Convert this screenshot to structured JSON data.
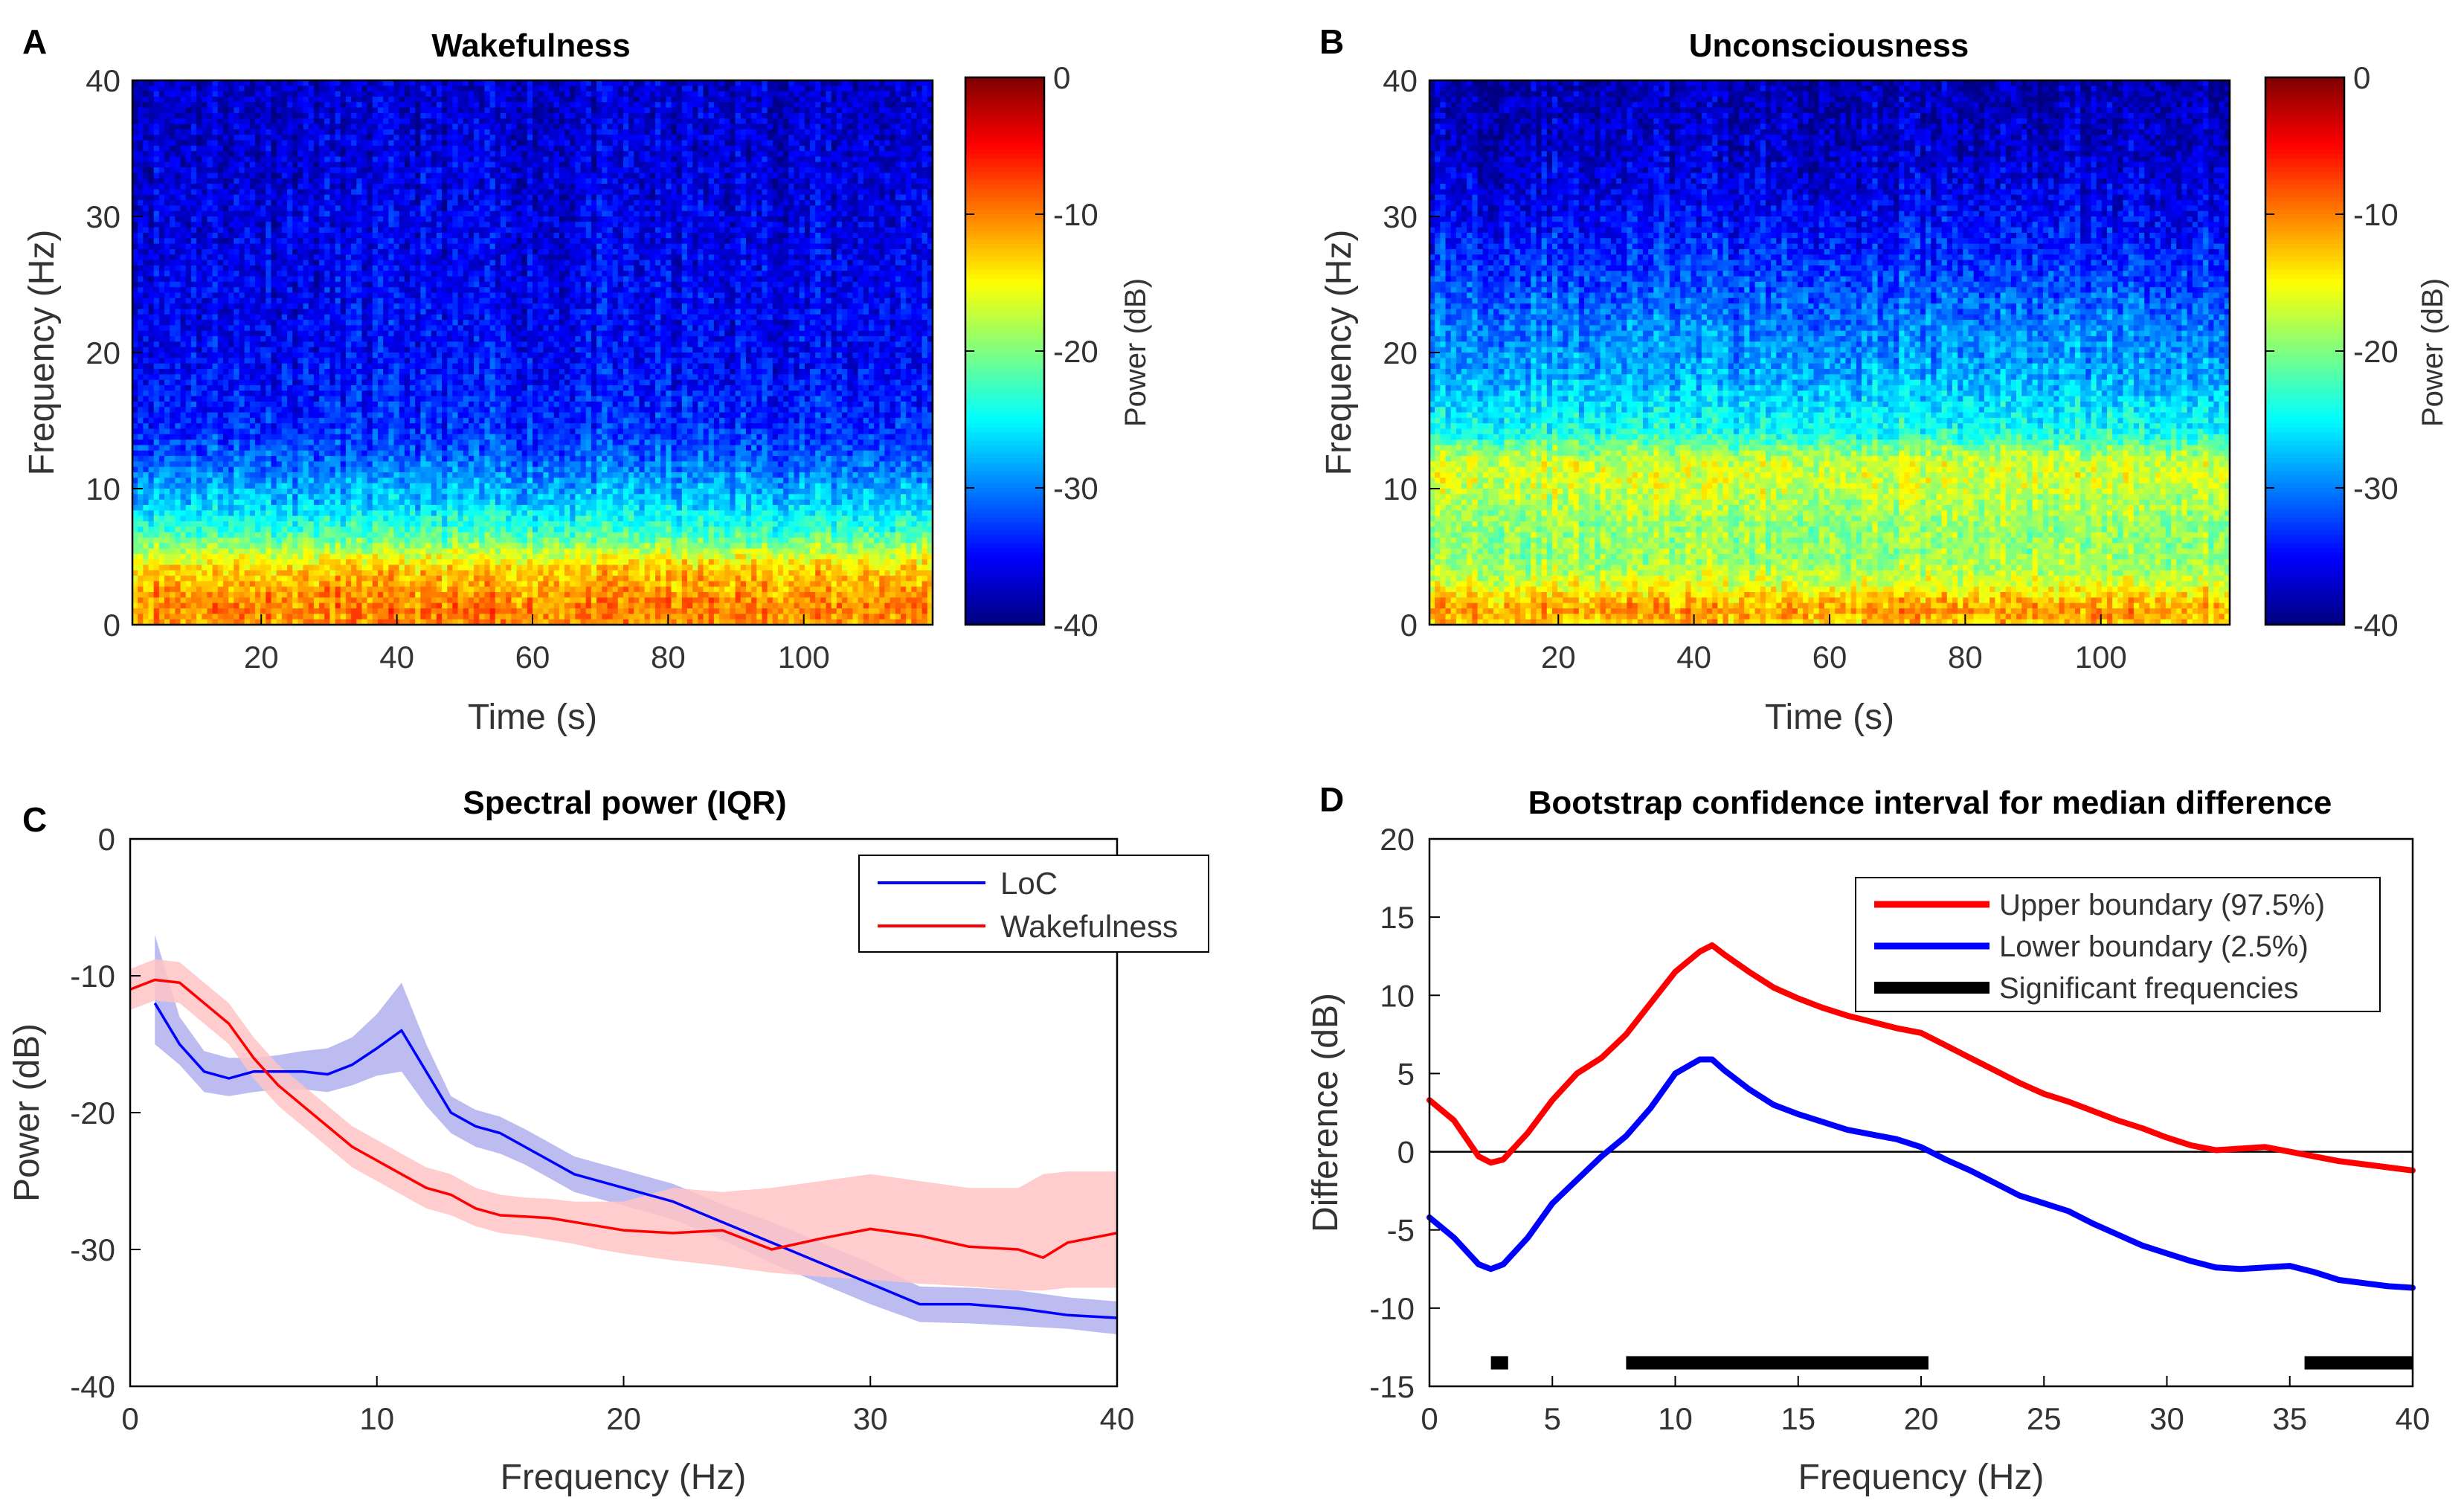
{
  "chart_data": [
    {
      "panel": "A",
      "type": "heatmap",
      "title": "Wakefulness",
      "xlabel": "Time (s)",
      "ylabel": "Frequency (Hz)",
      "xlim": [
        1,
        119
      ],
      "ylim": [
        0,
        40
      ],
      "xticks": [
        20,
        40,
        60,
        80,
        100
      ],
      "yticks": [
        0,
        10,
        20,
        30,
        40
      ],
      "colorbar": {
        "label": "Power (dB)",
        "ticks": [
          0,
          -10,
          -20,
          -30,
          -40
        ],
        "range": [
          -40,
          0
        ],
        "colormap": "jet"
      },
      "profile_freq_hz": [
        0,
        1,
        2,
        3,
        4,
        5,
        6,
        7,
        8,
        9,
        10,
        11,
        12,
        14,
        16,
        18,
        20,
        25,
        30,
        35,
        40
      ],
      "profile_power_db": [
        -11,
        -10,
        -10.5,
        -12,
        -13,
        -16,
        -20,
        -23,
        -25,
        -27,
        -28,
        -29.5,
        -31,
        -33,
        -34,
        -34.5,
        -35,
        -35.5,
        -36,
        -36.5,
        -37
      ]
    },
    {
      "panel": "B",
      "type": "heatmap",
      "title": "Unconsciousness",
      "xlabel": "Time (s)",
      "ylabel": "Frequency (Hz)",
      "xlim": [
        1,
        119
      ],
      "ylim": [
        0,
        40
      ],
      "xticks": [
        20,
        40,
        60,
        80,
        100
      ],
      "yticks": [
        0,
        10,
        20,
        30,
        40
      ],
      "colorbar": {
        "label": "Power (dB)",
        "ticks": [
          0,
          -10,
          -20,
          -30,
          -40
        ],
        "range": [
          -40,
          0
        ],
        "colormap": "jet"
      },
      "profile_freq_hz": [
        0,
        1,
        2,
        3,
        4,
        5,
        6,
        7,
        8,
        9,
        10,
        11,
        12,
        13,
        14,
        16,
        18,
        20,
        22,
        25,
        30,
        35,
        40
      ],
      "profile_power_db": [
        -13,
        -11,
        -13,
        -16,
        -18,
        -19,
        -19,
        -19,
        -18.5,
        -18,
        -17,
        -16.5,
        -17,
        -20,
        -24,
        -26,
        -28,
        -29,
        -30,
        -32,
        -35,
        -37,
        -38
      ]
    },
    {
      "panel": "C",
      "type": "line",
      "title": "Spectral power (IQR)",
      "xlabel": "Frequency (Hz)",
      "ylabel": "Power (dB)",
      "xlim": [
        0,
        40
      ],
      "ylim": [
        -40,
        0
      ],
      "xticks": [
        0,
        10,
        20,
        30,
        40
      ],
      "yticks": [
        0,
        -10,
        -20,
        -30,
        -40
      ],
      "legend": [
        "LoC",
        "Wakefulness"
      ],
      "legend_position": "top-right",
      "series": [
        {
          "name": "LoC",
          "color": "#0000ff",
          "band_color": "#b0b0ee",
          "x": [
            1,
            2,
            3,
            4,
            5,
            6,
            7,
            8,
            9,
            10,
            11,
            12,
            13,
            14,
            15,
            16,
            17,
            18,
            19,
            20,
            21,
            22,
            24,
            26,
            28,
            30,
            32,
            34,
            36,
            38,
            40
          ],
          "y": [
            -12,
            -15,
            -17,
            -17.5,
            -17,
            -17,
            -17,
            -17.2,
            -16.5,
            -15.3,
            -14,
            -17,
            -20,
            -21,
            -21.5,
            -22.5,
            -23.5,
            -24.5,
            -25,
            -25.5,
            -26,
            -26.5,
            -28,
            -29.5,
            -31,
            -32.5,
            -34,
            -34,
            -34.3,
            -34.8,
            -35
          ],
          "lower": [
            -15,
            -16.5,
            -18.5,
            -18.8,
            -18.5,
            -18.3,
            -18.3,
            -18.5,
            -18,
            -17.3,
            -17,
            -19.5,
            -21.5,
            -22.5,
            -23,
            -23.8,
            -24.8,
            -25.8,
            -26.3,
            -26.8,
            -27.3,
            -27.8,
            -29.3,
            -31,
            -32.5,
            -34,
            -35.3,
            -35.4,
            -35.6,
            -35.8,
            -36.2
          ],
          "upper": [
            -7,
            -13,
            -15.5,
            -16,
            -16,
            -15.8,
            -15.5,
            -15.3,
            -14.5,
            -12.8,
            -10.5,
            -15,
            -18.8,
            -19.8,
            -20.3,
            -21.2,
            -22.2,
            -23.2,
            -23.7,
            -24.2,
            -24.7,
            -25.2,
            -26.7,
            -28,
            -29.5,
            -31,
            -32.7,
            -32.8,
            -33,
            -33.5,
            -33.8
          ]
        },
        {
          "name": "Wakefulness",
          "color": "#ff0000",
          "band_color": "#ffc4c4",
          "x": [
            0,
            1,
            2,
            3,
            4,
            5,
            6,
            7,
            8,
            9,
            10,
            11,
            12,
            13,
            14,
            15,
            16,
            17,
            18,
            19,
            20,
            22,
            24,
            26,
            28,
            30,
            32,
            34,
            36,
            37,
            38,
            40
          ],
          "y": [
            -11,
            -10.3,
            -10.5,
            -12,
            -13.5,
            -16,
            -18,
            -19.5,
            -21,
            -22.5,
            -23.5,
            -24.5,
            -25.5,
            -26,
            -27,
            -27.5,
            -27.6,
            -27.7,
            -28,
            -28.3,
            -28.6,
            -28.8,
            -28.6,
            -30,
            -29.2,
            -28.5,
            -29,
            -29.8,
            -30,
            -30.6,
            -29.5,
            -28.8
          ],
          "lower": [
            -12.5,
            -11.8,
            -12,
            -13.5,
            -15,
            -17.5,
            -19.5,
            -21,
            -22.5,
            -24,
            -25,
            -26,
            -27,
            -27.5,
            -28.3,
            -28.8,
            -29,
            -29.3,
            -29.6,
            -30,
            -30.3,
            -30.8,
            -31.2,
            -31.7,
            -32,
            -32.2,
            -32.5,
            -32.7,
            -33,
            -33,
            -32.8,
            -32.8
          ],
          "upper": [
            -9.5,
            -8.8,
            -9,
            -10.5,
            -12,
            -14.5,
            -16.5,
            -18,
            -19.5,
            -21,
            -22,
            -23,
            -24,
            -24.5,
            -25.5,
            -26,
            -26.2,
            -26.3,
            -26.5,
            -26.5,
            -26.5,
            -25.5,
            -25.8,
            -25.5,
            -25,
            -24.5,
            -25,
            -25.5,
            -25.5,
            -24.5,
            -24.3,
            -24.3
          ]
        }
      ]
    },
    {
      "panel": "D",
      "type": "line",
      "title": "Bootstrap confidence interval for median difference",
      "xlabel": "Frequency (Hz)",
      "ylabel": "Difference (dB)",
      "xlim": [
        0,
        40
      ],
      "ylim": [
        -15,
        20
      ],
      "xticks": [
        0,
        5,
        10,
        15,
        20,
        25,
        30,
        35,
        40
      ],
      "yticks": [
        20,
        15,
        10,
        5,
        0,
        -5,
        -10,
        -15
      ],
      "reference_line": 0,
      "legend": [
        "Upper boundary (97.5%)",
        "Lower boundary (2.5%)",
        "Significant frequencies"
      ],
      "legend_position": "top-right",
      "series": [
        {
          "name": "Upper boundary (97.5%)",
          "color": "#ff0000",
          "x": [
            0,
            1,
            2,
            2.5,
            3,
            4,
            5,
            6,
            7,
            8,
            9,
            10,
            11,
            11.5,
            12,
            13,
            14,
            15,
            16,
            17,
            18,
            19,
            20,
            21,
            22,
            23,
            24,
            25,
            26,
            27,
            28,
            29,
            30,
            31,
            32,
            33,
            34,
            35,
            36,
            37,
            38,
            39,
            40
          ],
          "y": [
            3.3,
            2,
            -0.3,
            -0.7,
            -0.5,
            1.2,
            3.3,
            5,
            6,
            7.5,
            9.5,
            11.5,
            12.8,
            13.2,
            12.6,
            11.5,
            10.5,
            9.8,
            9.2,
            8.7,
            8.3,
            7.9,
            7.6,
            6.8,
            6,
            5.2,
            4.4,
            3.7,
            3.2,
            2.6,
            2,
            1.5,
            0.9,
            0.4,
            0.1,
            0.2,
            0.3,
            0,
            -0.3,
            -0.6,
            -0.8,
            -1,
            -1.2
          ]
        },
        {
          "name": "Lower boundary (2.5%)",
          "color": "#0000ff",
          "x": [
            0,
            1,
            2,
            2.5,
            3,
            4,
            5,
            6,
            7,
            8,
            9,
            10,
            11,
            11.5,
            12,
            13,
            14,
            15,
            16,
            17,
            18,
            19,
            20,
            21,
            22,
            23,
            24,
            25,
            26,
            27,
            28,
            29,
            30,
            31,
            32,
            33,
            34,
            35,
            36,
            37,
            38,
            39,
            40
          ],
          "y": [
            -4.2,
            -5.5,
            -7.2,
            -7.5,
            -7.2,
            -5.5,
            -3.3,
            -1.8,
            -0.3,
            1,
            2.8,
            5,
            5.9,
            5.9,
            5.2,
            4,
            3,
            2.4,
            1.9,
            1.4,
            1.1,
            0.8,
            0.3,
            -0.5,
            -1.2,
            -2,
            -2.8,
            -3.3,
            -3.8,
            -4.6,
            -5.3,
            -6,
            -6.5,
            -7,
            -7.4,
            -7.5,
            -7.4,
            -7.3,
            -7.7,
            -8.2,
            -8.4,
            -8.6,
            -8.7
          ]
        }
      ],
      "significant_ranges": [
        [
          2.5,
          3.2
        ],
        [
          8,
          20.3
        ],
        [
          35.6,
          40
        ]
      ],
      "significant_color": "#000000"
    }
  ],
  "panel_labels": [
    "A",
    "B",
    "C",
    "D"
  ]
}
